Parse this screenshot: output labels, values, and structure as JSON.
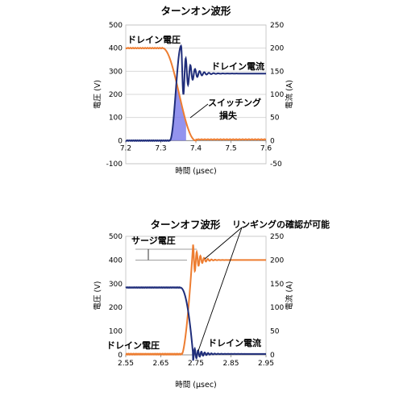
{
  "colors": {
    "voltage": "#ed7d31",
    "current": "#1f2d7a",
    "loss_fill": "#6f6fe8",
    "grid": "#d9d9d9"
  },
  "chart_data": [
    {
      "type": "line",
      "title": "ターンオン波形",
      "xlabel": "時間 (μsec)",
      "ylabel_left": "電圧 (V)",
      "ylabel_right": "電流 (A)",
      "xlim": [
        7.2,
        7.6
      ],
      "ylim_left": [
        -100,
        500
      ],
      "ylim_right": [
        -50,
        250
      ],
      "x_ticks": [
        "7.2",
        "7.3",
        "7.4",
        "7.5",
        "7.6"
      ],
      "y_left_ticks": [
        "-100",
        "0",
        "100",
        "200",
        "300",
        "400",
        "500"
      ],
      "y_right_ticks": [
        "-50",
        "0",
        "50",
        "100",
        "150",
        "200",
        "250"
      ],
      "grid": true,
      "series": [
        {
          "name": "ドレイン電圧",
          "axis": "left",
          "x": [
            7.2,
            7.3,
            7.32,
            7.34,
            7.36,
            7.38,
            7.4,
            7.45,
            7.6
          ],
          "y": [
            400,
            400,
            380,
            330,
            240,
            100,
            10,
            5,
            5
          ]
        },
        {
          "name": "ドレイン電流",
          "axis": "right",
          "x": [
            7.2,
            7.31,
            7.33,
            7.35,
            7.36,
            7.37,
            7.38,
            7.39,
            7.4,
            7.41,
            7.42,
            7.44,
            7.5,
            7.6
          ],
          "y": [
            0,
            0,
            40,
            160,
            205,
            130,
            180,
            125,
            160,
            135,
            152,
            145,
            145,
            145
          ]
        }
      ],
      "annotations": {
        "switching_loss": "スイッチング",
        "switching_loss_2": "損失"
      }
    },
    {
      "type": "line",
      "title": "ターンオフ波形",
      "xlabel": "時間 (μsec)",
      "ylabel_left": "電圧 (V)",
      "ylabel_right": "電流 (A)",
      "xlim": [
        2.55,
        2.95
      ],
      "ylim_left": [
        0,
        500
      ],
      "ylim_right": [
        0,
        250
      ],
      "x_ticks": [
        "2.55",
        "2.65",
        "2.75",
        "2.85",
        "2.95"
      ],
      "y_left_ticks": [
        "0",
        "100",
        "200",
        "300",
        "400",
        "500"
      ],
      "y_right_ticks": [
        "0",
        "50",
        "100",
        "150",
        "200",
        "250"
      ],
      "grid": false,
      "series": [
        {
          "name": "ドレイン電圧",
          "axis": "left",
          "x": [
            2.55,
            2.7,
            2.72,
            2.73,
            2.74,
            2.745,
            2.75,
            2.755,
            2.76,
            2.77,
            2.78,
            2.8,
            2.95
          ],
          "y": [
            0,
            5,
            60,
            200,
            380,
            465,
            440,
            385,
            420,
            395,
            405,
            400,
            400
          ]
        },
        {
          "name": "ドレイン電流",
          "axis": "right",
          "x": [
            2.55,
            2.7,
            2.72,
            2.73,
            2.74,
            2.745,
            2.75,
            2.755,
            2.76,
            2.77,
            2.78,
            2.8,
            2.95
          ],
          "y": [
            142,
            142,
            132,
            100,
            40,
            0,
            -8,
            15,
            -3,
            8,
            0,
            3,
            2
          ]
        }
      ],
      "annotations": {
        "surge_voltage": "サージ電圧",
        "ringing": "リンギングの確認が可能"
      }
    }
  ]
}
